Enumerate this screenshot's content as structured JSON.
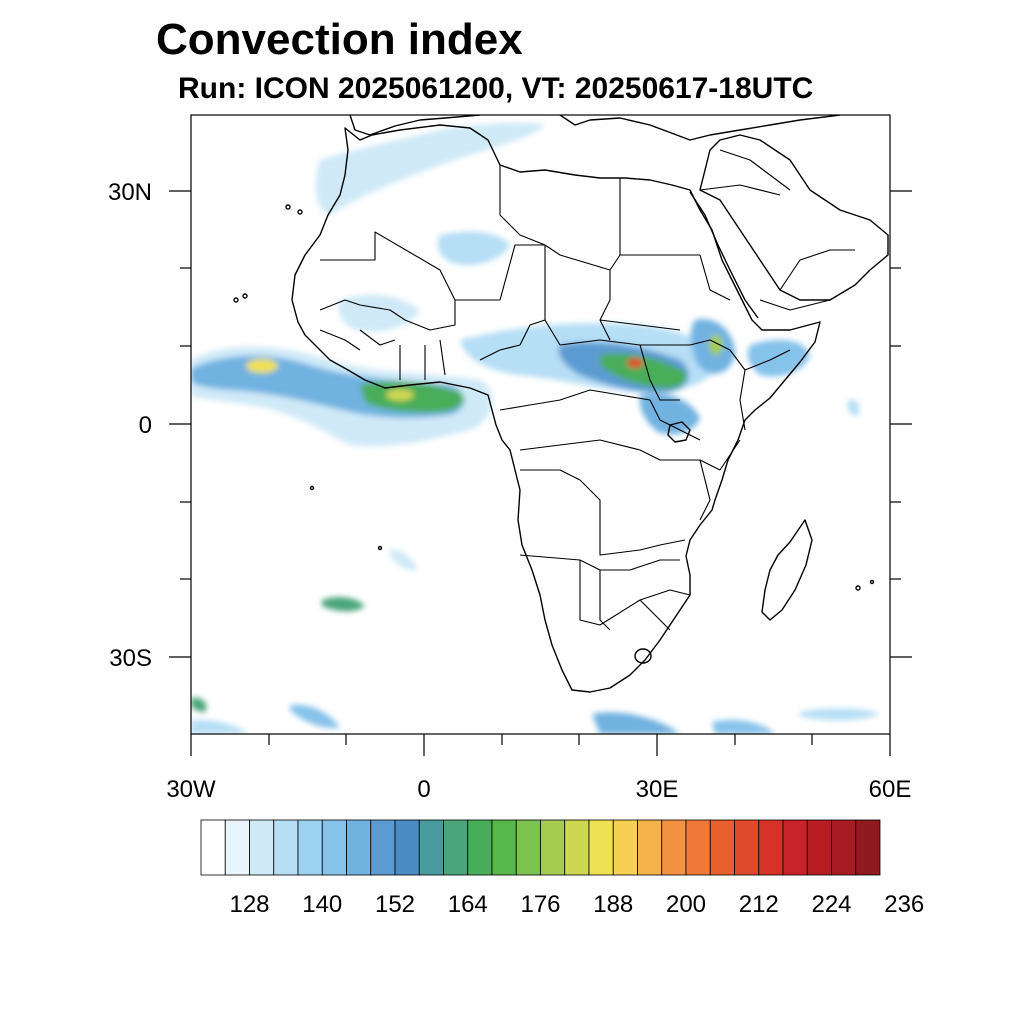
{
  "title": "Convection index",
  "subtitle": "Run: ICON 2025061200,  VT: 20250617-18UTC",
  "axes": {
    "lon_labels": [
      "30W",
      "0",
      "30E",
      "60E"
    ],
    "lat_labels": [
      "30N",
      "0",
      "30S"
    ]
  },
  "colorbar": {
    "colors": [
      "#ffffff",
      "#e8f5fc",
      "#cfe9f7",
      "#b6def5",
      "#9cd3f2",
      "#86c3ea",
      "#71b2e1",
      "#5b9bd2",
      "#4b8cc4",
      "#4a9ba0",
      "#4aa57a",
      "#48ad5a",
      "#56b849",
      "#7cc24e",
      "#a6cc4f",
      "#cdd752",
      "#efe154",
      "#f7cf52",
      "#f5b24a",
      "#f29242",
      "#ef7a38",
      "#e9602f",
      "#e04a2c",
      "#d73229",
      "#c92228",
      "#b81d24",
      "#a81b22",
      "#911a1f"
    ],
    "tick_labels": [
      "128",
      "140",
      "152",
      "164",
      "176",
      "188",
      "200",
      "212",
      "224",
      "236"
    ]
  },
  "icons": {
    "coastlines": "coastline-lines",
    "borders": "country-border-lines"
  }
}
